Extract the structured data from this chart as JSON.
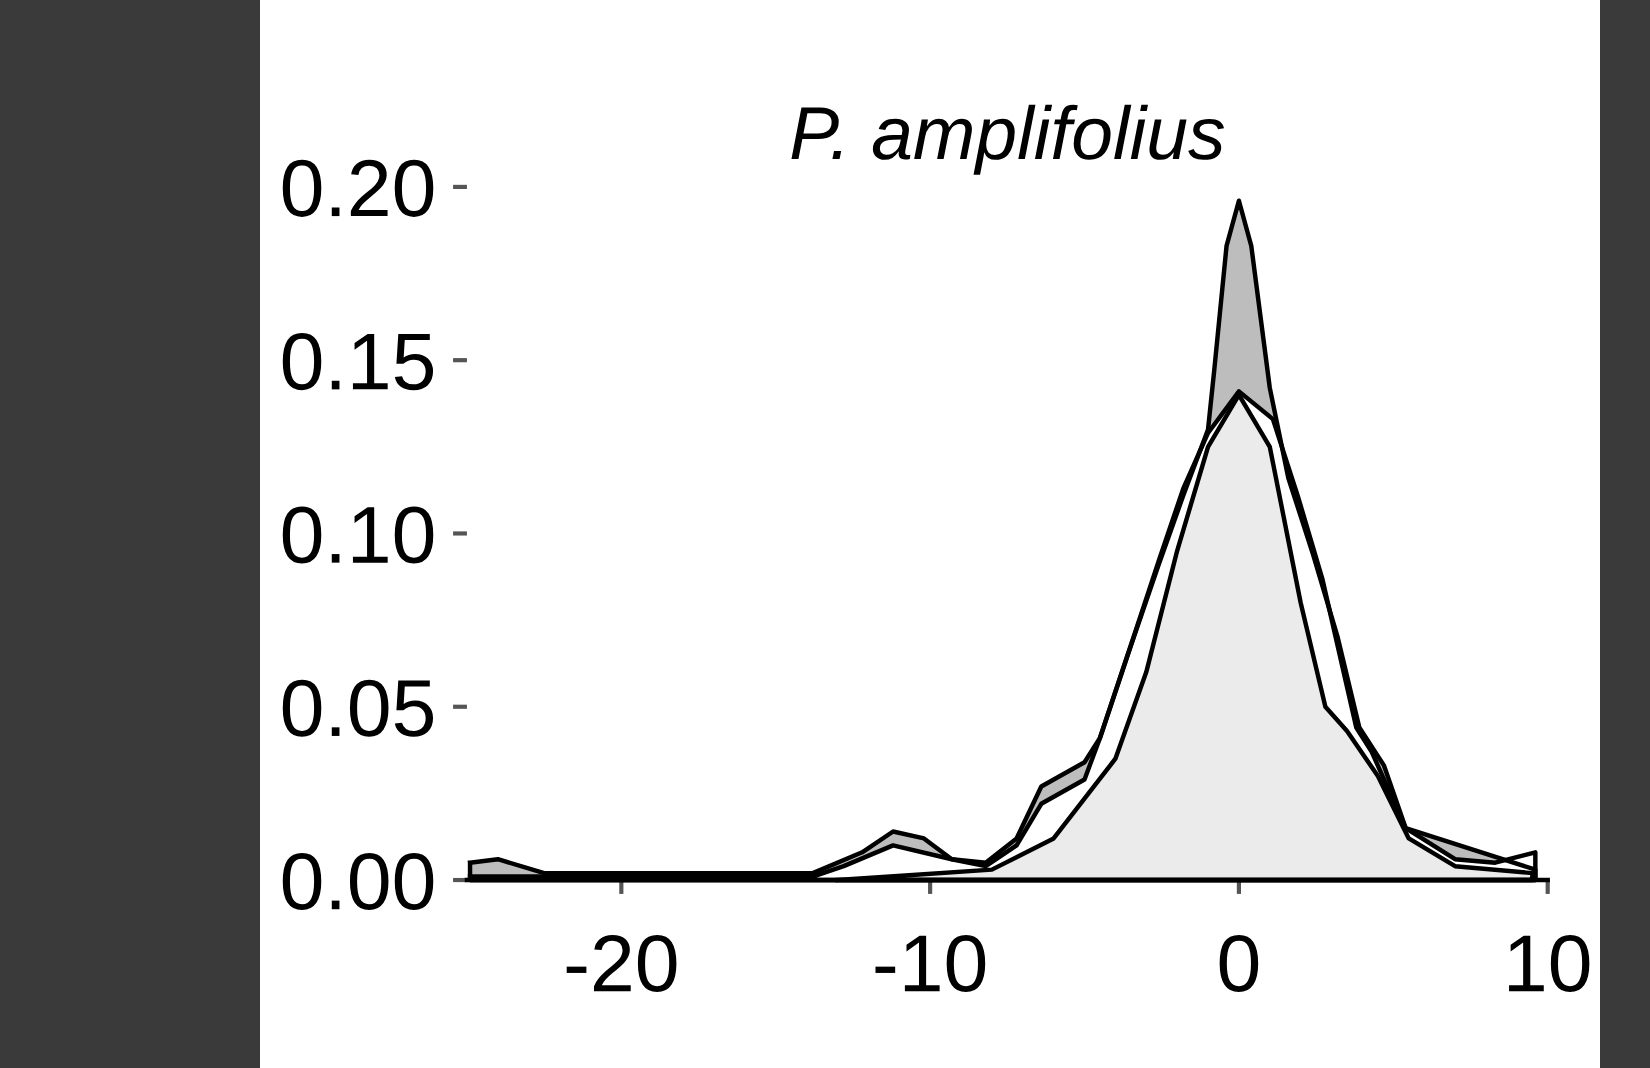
{
  "chart_data": {
    "type": "area",
    "title": "P. amplifolius",
    "xlim": [
      -25,
      10
    ],
    "ylim": [
      0,
      0.2
    ],
    "xticks": [
      -20,
      -10,
      0,
      10
    ],
    "yticks": [
      {
        "value": 0,
        "label": "0.00"
      },
      {
        "value": 0.05,
        "label": "0.05"
      },
      {
        "value": 0.1,
        "label": "0.10"
      },
      {
        "value": 0.15,
        "label": "0.15"
      },
      {
        "value": 0.2,
        "label": "0.20"
      }
    ],
    "series": [
      {
        "color": "#bdbdbd",
        "x": [
          -24.9,
          -24.0,
          -22.5,
          -13.8,
          -12.2,
          -11.2,
          -10.2,
          -9.3,
          -8.2,
          -7.2,
          -6.4,
          -5.0,
          -4.5,
          -3.6,
          -2.6,
          -1.8,
          -1.0,
          -0.8,
          -0.4,
          0,
          0.4,
          1.0,
          1.6,
          2.4,
          3.2,
          3.9,
          4.7,
          5.4,
          9.6
        ],
        "values": [
          0.005,
          0.006,
          0.002,
          0.002,
          0.008,
          0.014,
          0.012,
          0.006,
          0.005,
          0.012,
          0.027,
          0.034,
          0.041,
          0.065,
          0.091,
          0.111,
          0.13,
          0.147,
          0.183,
          0.196,
          0.183,
          0.142,
          0.116,
          0.094,
          0.07,
          0.044,
          0.033,
          0.015,
          0.003
        ]
      },
      {
        "color": "#ffffff",
        "x": [
          -24.9,
          -13.8,
          -12.8,
          -11.2,
          -9.3,
          -8.2,
          -7.2,
          -6.4,
          -5.0,
          -4.5,
          -3.6,
          -2.6,
          -1.8,
          -1.0,
          0,
          1.1,
          1.9,
          2.7,
          3.8,
          4.3,
          5.4,
          7.0,
          8.3,
          9.6
        ],
        "values": [
          0.001,
          0.001,
          0.004,
          0.01,
          0.006,
          0.004,
          0.01,
          0.022,
          0.029,
          0.041,
          0.065,
          0.092,
          0.113,
          0.129,
          0.141,
          0.133,
          0.111,
          0.087,
          0.044,
          0.037,
          0.015,
          0.006,
          0.005,
          0.008
        ]
      },
      {
        "color": "#ebebeb",
        "x": [
          -13,
          -8,
          -6,
          -4,
          -3,
          -2,
          -1,
          0,
          1,
          2,
          2.8,
          3.5,
          4.5,
          5.5,
          7,
          9.5
        ],
        "values": [
          0,
          0.003,
          0.012,
          0.035,
          0.06,
          0.095,
          0.125,
          0.14,
          0.125,
          0.08,
          0.05,
          0.043,
          0.03,
          0.012,
          0.004,
          0.002
        ]
      }
    ]
  }
}
